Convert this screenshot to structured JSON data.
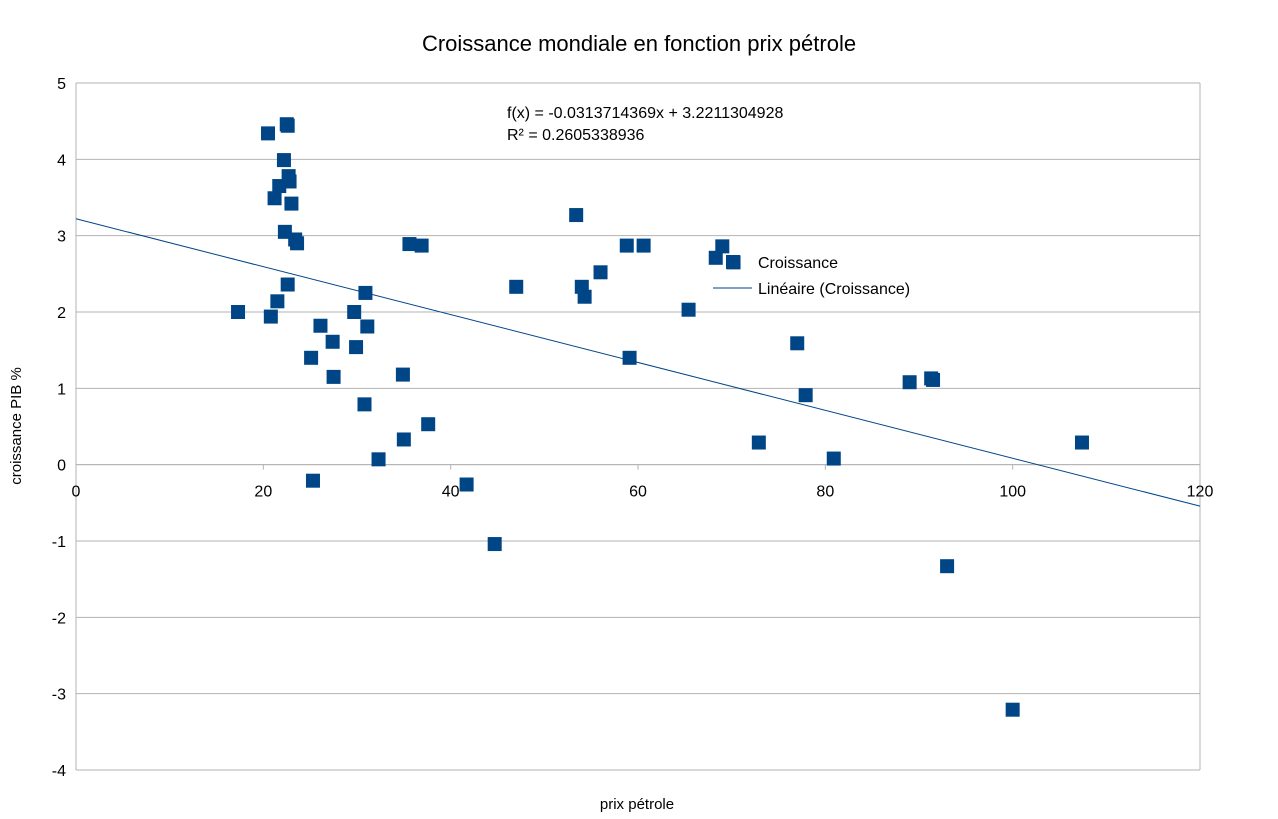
{
  "chart_data": {
    "type": "scatter",
    "title": "Croissance mondiale en fonction prix pétrole",
    "xlabel": "prix pétrole",
    "ylabel": "croissance PIB %",
    "xlim": [
      0,
      120
    ],
    "ylim": [
      -4,
      5
    ],
    "x_ticks": [
      0,
      20,
      40,
      60,
      80,
      100,
      120
    ],
    "y_ticks": [
      5,
      4,
      3,
      2,
      1,
      0,
      -1,
      -2,
      -3,
      -4
    ],
    "grid": "horizontal",
    "legend_position": "right",
    "colors": {
      "points": "#004586",
      "trend": "#004586",
      "grid": "#b3b3b3",
      "axis": "#b3b3b3"
    },
    "series": [
      {
        "name": "Croissance",
        "points": [
          {
            "x": 17.3,
            "y": 2.0
          },
          {
            "x": 20.5,
            "y": 4.34
          },
          {
            "x": 20.8,
            "y": 1.94
          },
          {
            "x": 21.2,
            "y": 3.49
          },
          {
            "x": 21.5,
            "y": 2.14
          },
          {
            "x": 21.7,
            "y": 3.65
          },
          {
            "x": 22.2,
            "y": 3.99
          },
          {
            "x": 22.3,
            "y": 3.05
          },
          {
            "x": 22.5,
            "y": 4.46
          },
          {
            "x": 22.6,
            "y": 4.44
          },
          {
            "x": 22.6,
            "y": 2.36
          },
          {
            "x": 22.7,
            "y": 3.78
          },
          {
            "x": 22.8,
            "y": 3.71
          },
          {
            "x": 23.0,
            "y": 3.42
          },
          {
            "x": 23.4,
            "y": 2.95
          },
          {
            "x": 23.6,
            "y": 2.9
          },
          {
            "x": 25.1,
            "y": 1.4
          },
          {
            "x": 25.3,
            "y": -0.21
          },
          {
            "x": 26.1,
            "y": 1.82
          },
          {
            "x": 27.4,
            "y": 1.61
          },
          {
            "x": 27.5,
            "y": 1.15
          },
          {
            "x": 29.7,
            "y": 2.0
          },
          {
            "x": 29.9,
            "y": 1.54
          },
          {
            "x": 30.8,
            "y": 0.79
          },
          {
            "x": 30.9,
            "y": 2.25
          },
          {
            "x": 31.1,
            "y": 1.81
          },
          {
            "x": 32.3,
            "y": 0.07
          },
          {
            "x": 34.9,
            "y": 1.18
          },
          {
            "x": 35.0,
            "y": 0.33
          },
          {
            "x": 35.6,
            "y": 2.89
          },
          {
            "x": 36.9,
            "y": 2.87
          },
          {
            "x": 37.6,
            "y": 0.53
          },
          {
            "x": 41.7,
            "y": -0.26
          },
          {
            "x": 44.7,
            "y": -1.04
          },
          {
            "x": 47.0,
            "y": 2.33
          },
          {
            "x": 53.4,
            "y": 3.27
          },
          {
            "x": 54.0,
            "y": 2.33
          },
          {
            "x": 54.3,
            "y": 2.2
          },
          {
            "x": 56.0,
            "y": 2.52
          },
          {
            "x": 58.8,
            "y": 2.87
          },
          {
            "x": 59.1,
            "y": 1.4
          },
          {
            "x": 60.6,
            "y": 2.87
          },
          {
            "x": 65.4,
            "y": 2.03
          },
          {
            "x": 68.3,
            "y": 2.71
          },
          {
            "x": 69.0,
            "y": 2.86
          },
          {
            "x": 70.2,
            "y": 2.65
          },
          {
            "x": 72.9,
            "y": 0.29
          },
          {
            "x": 77.0,
            "y": 1.59
          },
          {
            "x": 77.9,
            "y": 0.91
          },
          {
            "x": 80.9,
            "y": 0.08
          },
          {
            "x": 89.0,
            "y": 1.08
          },
          {
            "x": 91.3,
            "y": 1.13
          },
          {
            "x": 91.5,
            "y": 1.11
          },
          {
            "x": 93.0,
            "y": -1.33
          },
          {
            "x": 100.0,
            "y": -3.21
          },
          {
            "x": 107.4,
            "y": 0.29
          }
        ]
      },
      {
        "name": "Linéaire (Croissance)",
        "type": "trendline",
        "slope": -0.0313714369,
        "intercept": 3.2211304928
      }
    ],
    "annotations": {
      "equation": "f(x) = -0.0313714369x + 3.2211304928",
      "r_squared": "R² = 0.2605338936"
    }
  }
}
